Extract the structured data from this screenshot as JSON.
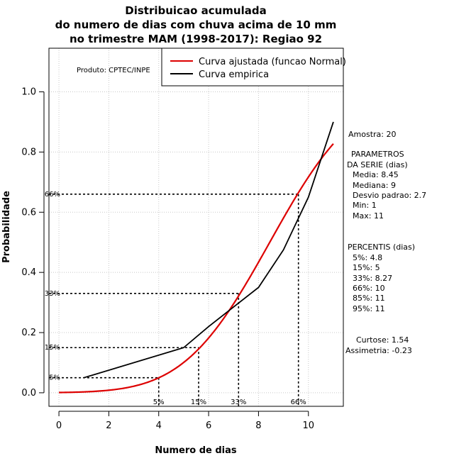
{
  "chart_data": {
    "type": "line",
    "title_lines": [
      "Distribuicao acumulada",
      "do numero de dias com chuva acima de 10 mm",
      "no trimestre MAM (1998-2017): Regiao 92"
    ],
    "xlabel": "Numero de dias",
    "ylabel": "Probabilidade",
    "xlim": [
      -0.4,
      11.4
    ],
    "ylim": [
      -0.045,
      1.145
    ],
    "x_ticks": [
      0,
      2,
      4,
      6,
      8,
      10
    ],
    "y_ticks": [
      0.0,
      0.2,
      0.4,
      0.6,
      0.8,
      1.0
    ],
    "y_tick_labels": [
      "0.0",
      "0.2",
      "0.4",
      "0.6",
      "0.8",
      "1.0"
    ],
    "grid": true,
    "source_note": "Produto: CPTEC/INPE",
    "series": [
      {
        "name": "Curva ajustada (funcao Normal)",
        "color": "#dd0000",
        "distribution": "normal",
        "mean": 8.45,
        "sd": 2.7,
        "x_range": [
          0,
          11
        ]
      },
      {
        "name": "Curva empirica",
        "color": "#000000",
        "x": [
          1,
          5,
          6,
          7,
          8,
          9,
          10,
          11
        ],
        "y": [
          0.05,
          0.15,
          0.22,
          0.285,
          0.35,
          0.475,
          0.65,
          0.9
        ]
      }
    ],
    "percentile_markers": [
      {
        "label": "5%",
        "prob": 0.05,
        "x": 4.0
      },
      {
        "label": "15%",
        "prob": 0.15,
        "x": 5.6
      },
      {
        "label": "33%",
        "prob": 0.33,
        "x": 7.2
      },
      {
        "label": "66%",
        "prob": 0.66,
        "x": 9.6
      }
    ],
    "side_panel": {
      "amostra": "Amostra: 20",
      "params_title_1": "PARAMETROS",
      "params_title_2": "DA SERIE (dias)",
      "params": [
        "Media: 8.45",
        "Mediana: 9",
        "Desvio padrao: 2.7",
        "Min: 1",
        "Max: 11"
      ],
      "percentis_title": "PERCENTIS (dias)",
      "percentis": [
        "5%: 4.8",
        "15%: 5",
        "33%: 8.27",
        "66%: 10",
        "85%: 11",
        "95%: 11"
      ],
      "curtose": "Curtose: 1.54",
      "assimetria": "Assimetria: -0.23"
    }
  }
}
